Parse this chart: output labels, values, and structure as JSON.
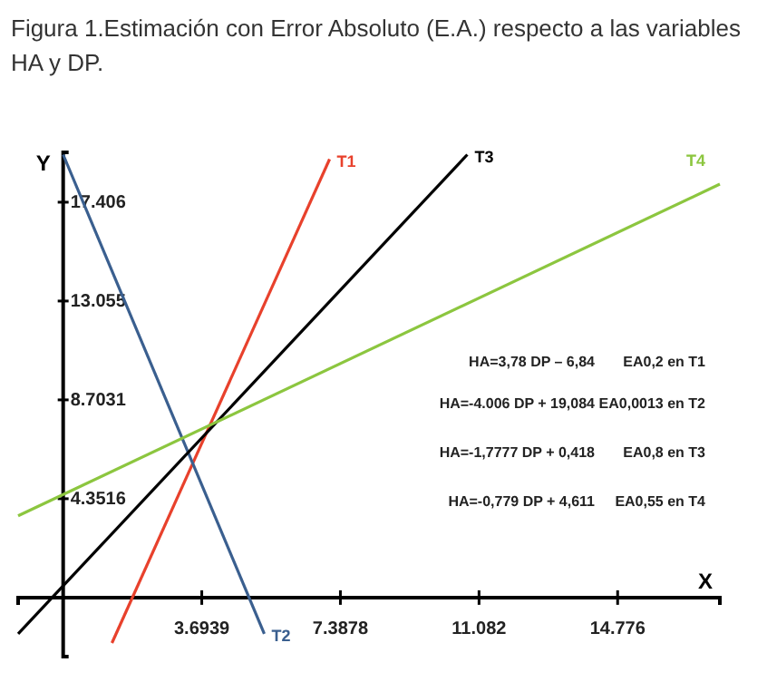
{
  "chart_data": {
    "type": "line",
    "title": "Figura 1.Estimación con Error Absoluto (E.A.) respecto a las variables HA y DP.",
    "xlabel": "X",
    "ylabel": "Y",
    "xlim": [
      -1.2,
      17.5
    ],
    "ylim": [
      -2.6,
      19.6
    ],
    "xticks": [
      3.6939,
      7.3878,
      11.082,
      14.776
    ],
    "yticks": [
      4.3516,
      8.7031,
      13.055,
      17.406
    ],
    "grid": false,
    "legend": false,
    "marker": "none",
    "line_style": "solid",
    "series": [
      {
        "name": "T1",
        "color": "#e8412c",
        "x": [
          1.3,
          7.1
        ],
        "values": [
          -2.0,
          19.3
        ]
      },
      {
        "name": "T2",
        "color": "#3a5f8f",
        "x": [
          0,
          5.36
        ],
        "values": [
          19.5,
          -1.6
        ]
      },
      {
        "name": "T3",
        "color": "#000000",
        "x": [
          -1.2,
          10.77
        ],
        "values": [
          -1.6,
          19.5
        ]
      },
      {
        "name": "T4",
        "color": "#8cc63f",
        "x": [
          -1.2,
          17.5
        ],
        "values": [
          3.6,
          18.2
        ]
      }
    ],
    "annotations": [
      "HA=3,78 DP – 6,84",
      "EA0,2 en T1",
      "HA=-4.006 DP + 19,084",
      "EA0,0013 en T2",
      "HA=-1,7777 DP + 0,418",
      "EA0,8 en T3",
      "HA=-0,779 DP + 4,611",
      "EA0,55 en T4"
    ]
  }
}
